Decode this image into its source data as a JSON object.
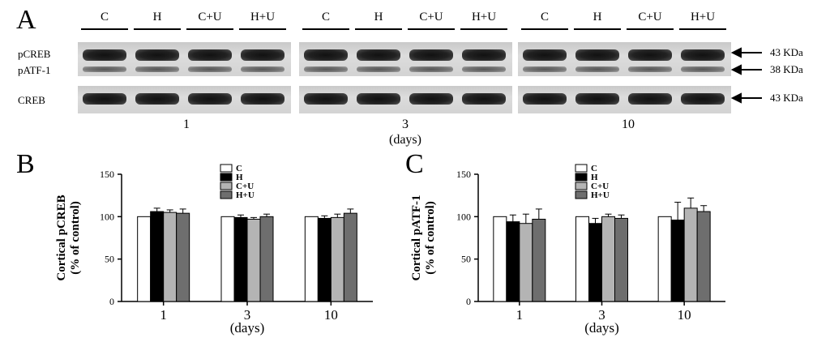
{
  "figure": {
    "panels": {
      "a": "A",
      "b": "B",
      "c": "C"
    },
    "lane_labels": [
      "C",
      "H",
      "C+U",
      "H+U"
    ],
    "blot_rows": {
      "pcreb": "pCREB",
      "patf1": "pATF-1",
      "creb": "CREB"
    },
    "markers": {
      "pcreb": "43 KDa",
      "patf1": "38 KDa",
      "creb": "43 KDa"
    },
    "timepoints": [
      "1",
      "3",
      "10"
    ],
    "time_unit": "(days)"
  },
  "chart_data": [
    {
      "type": "bar",
      "panel": "B",
      "categories": [
        "1",
        "3",
        "10"
      ],
      "xlabel": "(days)",
      "ylabel_line1": "Cortical pCREB",
      "ylabel_line2": "(% of control)",
      "ylim": [
        0,
        150
      ],
      "yticks": [
        "0",
        "50",
        "100",
        "150"
      ],
      "legend_position": "top-center",
      "series": [
        {
          "name": "C",
          "values": [
            100,
            100,
            100
          ],
          "errors": [
            0,
            0,
            0
          ],
          "fill": "#ffffff"
        },
        {
          "name": "H",
          "values": [
            106,
            99,
            98
          ],
          "errors": [
            4,
            3,
            3
          ],
          "fill": "#000000"
        },
        {
          "name": "C+U",
          "values": [
            105,
            97,
            99
          ],
          "errors": [
            3,
            2,
            4
          ],
          "fill": "#b4b4b4"
        },
        {
          "name": "H+U",
          "values": [
            104,
            100,
            104
          ],
          "errors": [
            5,
            3,
            5
          ],
          "fill": "#6e6e6e"
        }
      ]
    },
    {
      "type": "bar",
      "panel": "C",
      "categories": [
        "1",
        "3",
        "10"
      ],
      "xlabel": "(days)",
      "ylabel_line1": "Cortical pATF-1",
      "ylabel_line2": "(% of control)",
      "ylim": [
        0,
        150
      ],
      "yticks": [
        "0",
        "50",
        "100",
        "150"
      ],
      "legend_position": "top-center",
      "series": [
        {
          "name": "C",
          "values": [
            100,
            100,
            100
          ],
          "errors": [
            0,
            0,
            0
          ],
          "fill": "#ffffff"
        },
        {
          "name": "H",
          "values": [
            94,
            92,
            96
          ],
          "errors": [
            8,
            6,
            21
          ],
          "fill": "#000000"
        },
        {
          "name": "C+U",
          "values": [
            92,
            100,
            110
          ],
          "errors": [
            11,
            3,
            12
          ],
          "fill": "#b4b4b4"
        },
        {
          "name": "H+U",
          "values": [
            97,
            98,
            106
          ],
          "errors": [
            12,
            4,
            7
          ],
          "fill": "#6e6e6e"
        }
      ]
    }
  ]
}
